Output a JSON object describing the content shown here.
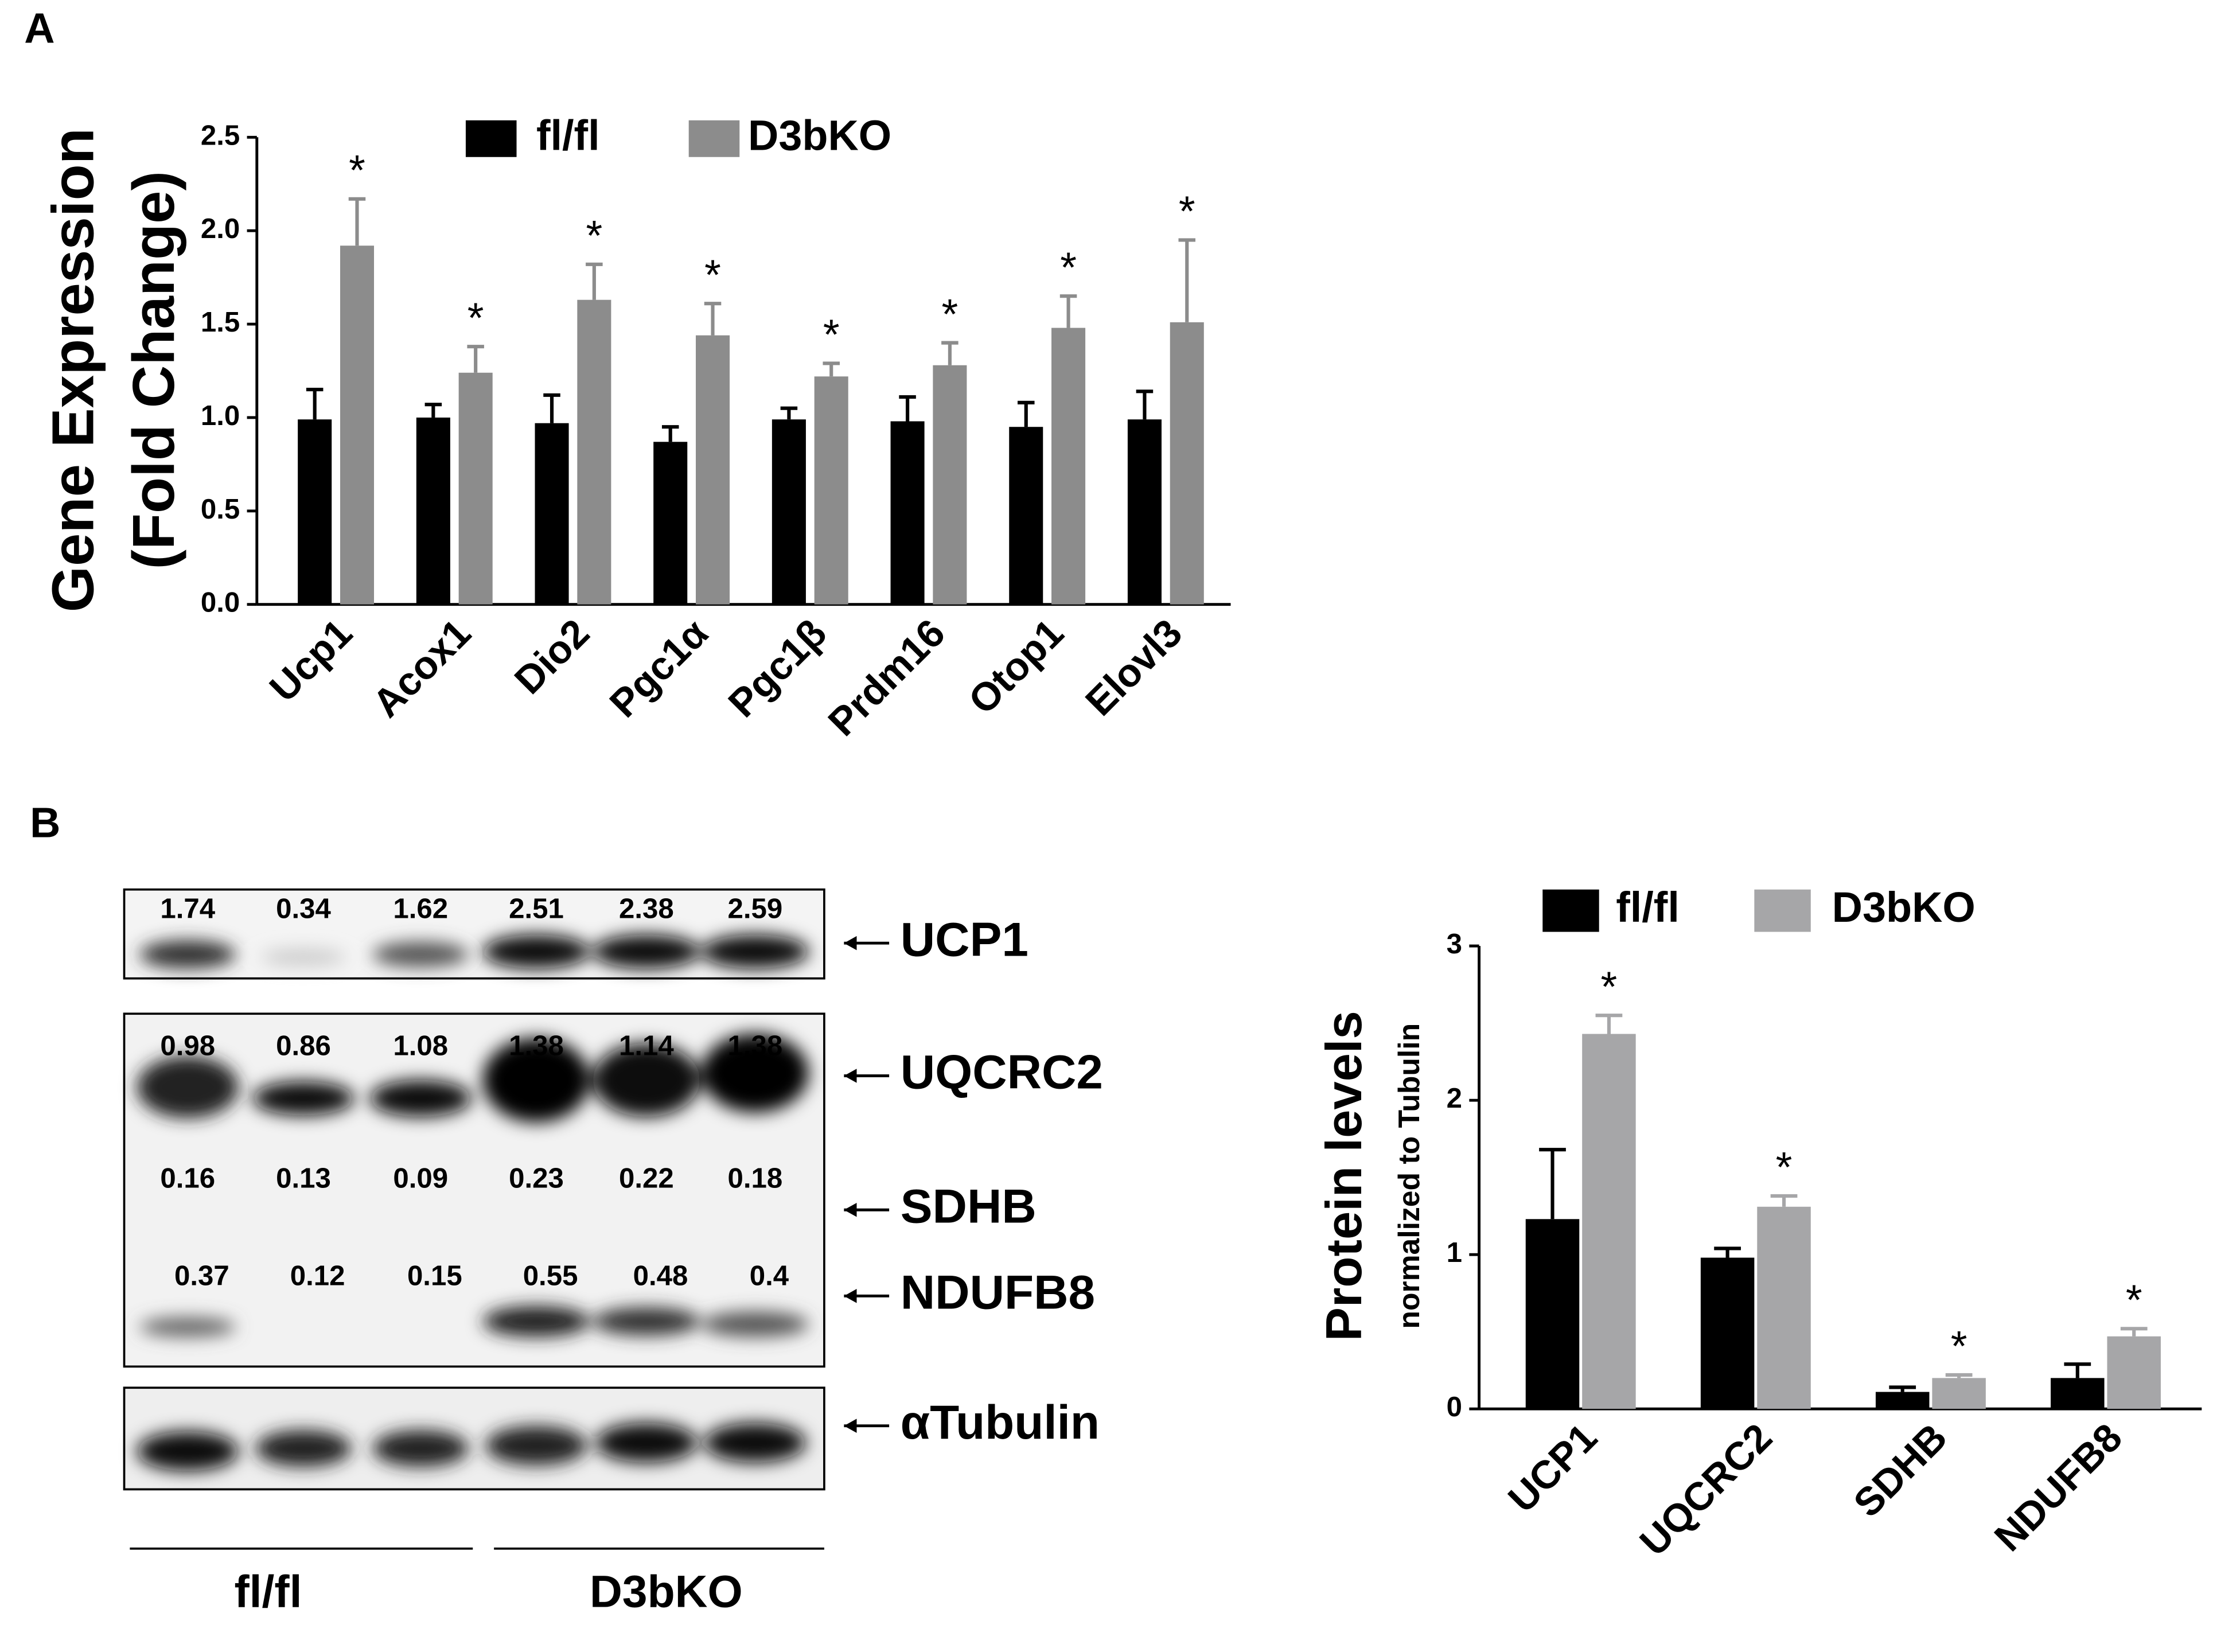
{
  "panel_labels": [
    "A",
    "B"
  ],
  "chart_data": [
    {
      "type": "bar",
      "ylabel": [
        "Gene Expression",
        "(Fold Change)"
      ],
      "categories": [
        "Ucp1",
        "Acox1",
        "Dio2",
        "Pgc1α",
        "Pgc1β",
        "Prdm16",
        "Otop1",
        "Elovl3"
      ],
      "series": [
        {
          "name": "fl/fl",
          "color": "#000000",
          "values": [
            0.99,
            1.0,
            0.97,
            0.87,
            0.99,
            0.98,
            0.95,
            0.99
          ],
          "errors": [
            0.16,
            0.07,
            0.15,
            0.08,
            0.06,
            0.13,
            0.13,
            0.15
          ]
        },
        {
          "name": "D3bKO",
          "color": "#8c8c8c",
          "values": [
            1.92,
            1.24,
            1.63,
            1.44,
            1.22,
            1.28,
            1.48,
            1.51
          ],
          "errors": [
            0.25,
            0.14,
            0.19,
            0.17,
            0.07,
            0.12,
            0.17,
            0.44
          ]
        }
      ],
      "significance": [
        "*",
        "*",
        "*",
        "*",
        "*",
        "*",
        "*",
        "*"
      ],
      "ylim": [
        0,
        2.5
      ],
      "yticks": [
        {
          "value": 0,
          "label": "0.0"
        },
        0.5,
        {
          "value": 1,
          "label": "1.0"
        },
        1.5,
        {
          "value": 2,
          "label": "2.0"
        },
        2.5
      ],
      "legend": "top"
    },
    {
      "type": "bar",
      "ylabel": [
        "Protein levels",
        "normalized to Tubulin"
      ],
      "categories": [
        "UCP1",
        "UQCRC2",
        "SDHB",
        "NDUFB8"
      ],
      "series": [
        {
          "name": "fl/fl",
          "color": "#000000",
          "values": [
            1.23,
            0.98,
            0.11,
            0.2
          ],
          "errors": [
            0.45,
            0.06,
            0.03,
            0.09
          ]
        },
        {
          "name": "D3bKO",
          "color": "#a6a6a8",
          "values": [
            2.43,
            1.31,
            0.2,
            0.47
          ],
          "errors": [
            0.12,
            0.07,
            0.02,
            0.05
          ]
        }
      ],
      "significance": [
        "*",
        "*",
        "*",
        "*"
      ],
      "ylim": [
        0,
        3
      ],
      "yticks": [
        0,
        1,
        2,
        3
      ],
      "legend": "top"
    }
  ],
  "blot": {
    "rows": [
      {
        "label": "UCP1",
        "values": [
          1.74,
          0.34,
          1.62,
          2.51,
          2.38,
          2.59
        ]
      },
      {
        "label": "UQCRC2",
        "values": [
          0.98,
          0.86,
          1.08,
          1.38,
          1.14,
          1.38
        ]
      },
      {
        "label": "SDHB",
        "values": [
          0.16,
          0.13,
          0.09,
          0.23,
          0.22,
          0.18
        ]
      },
      {
        "label": "NDUFB8",
        "values": [
          0.37,
          0.12,
          0.15,
          0.55,
          0.48,
          0.4
        ]
      },
      {
        "label": "αTubulin"
      }
    ],
    "groups": [
      "fl/fl",
      "D3bKO"
    ]
  }
}
